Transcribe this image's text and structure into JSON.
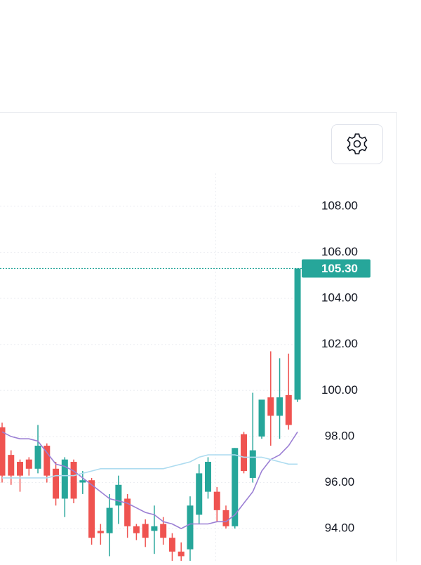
{
  "chart_data": {
    "type": "candlestick",
    "ohlc": [
      [
        98.4,
        98.6,
        96.0,
        96.3
      ],
      [
        97.2,
        97.4,
        95.9,
        96.3
      ],
      [
        96.9,
        97.0,
        95.6,
        96.3
      ],
      [
        97.0,
        97.1,
        96.3,
        96.6
      ],
      [
        96.6,
        98.5,
        96.4,
        97.6
      ],
      [
        97.6,
        97.7,
        96.0,
        96.3
      ],
      [
        96.6,
        96.9,
        95.0,
        95.3
      ],
      [
        95.3,
        97.1,
        94.5,
        97.0
      ],
      [
        96.9,
        97.0,
        95.1,
        95.3
      ],
      [
        96.0,
        96.5,
        95.5,
        96.1
      ],
      [
        96.1,
        96.2,
        93.3,
        93.6
      ],
      [
        93.9,
        94.2,
        93.3,
        93.8
      ],
      [
        93.8,
        95.5,
        92.8,
        94.9
      ],
      [
        95.0,
        96.3,
        94.2,
        95.9
      ],
      [
        95.3,
        95.5,
        93.6,
        94.1
      ],
      [
        94.1,
        94.2,
        93.5,
        93.8
      ],
      [
        94.2,
        94.4,
        93.2,
        93.6
      ],
      [
        93.9,
        95.0,
        92.9,
        94.1
      ],
      [
        94.2,
        94.5,
        93.3,
        93.6
      ],
      [
        93.6,
        93.8,
        92.6,
        93.0
      ],
      [
        93.0,
        93.4,
        92.6,
        92.8
      ],
      [
        93.1,
        95.4,
        92.6,
        95.0
      ],
      [
        94.6,
        96.8,
        94.2,
        96.4
      ],
      [
        95.6,
        97.1,
        95.3,
        96.9
      ],
      [
        95.6,
        95.8,
        94.3,
        94.8
      ],
      [
        94.8,
        95.0,
        94.0,
        94.1
      ],
      [
        94.1,
        97.5,
        94.0,
        97.5
      ],
      [
        98.1,
        98.2,
        96.4,
        96.5
      ],
      [
        96.2,
        99.9,
        96.0,
        97.4
      ],
      [
        98.0,
        99.5,
        97.9,
        99.6
      ],
      [
        99.7,
        101.7,
        97.6,
        98.9
      ],
      [
        98.9,
        101.4,
        97.9,
        99.7
      ],
      [
        99.8,
        101.6,
        98.3,
        98.5
      ],
      [
        99.6,
        105.3,
        99.5,
        105.3
      ]
    ],
    "up_color": "#26a69a",
    "down_color": "#ef5350",
    "series": [
      {
        "color": "#9b7fd4",
        "values": [
          98.2,
          98.0,
          97.9,
          97.9,
          97.8,
          97.3,
          96.8,
          96.7,
          96.5,
          96.2,
          95.9,
          95.6,
          95.3,
          95.2,
          95.1,
          94.9,
          94.7,
          94.6,
          94.3,
          94.2,
          94.0,
          94.2,
          94.2,
          94.2,
          94.3,
          94.3,
          94.6,
          95.1,
          95.6,
          96.5,
          97.0,
          97.2,
          97.6,
          98.2
        ]
      },
      {
        "color": "#aedcf0",
        "values": [
          96.2,
          96.2,
          96.2,
          96.2,
          96.2,
          96.2,
          96.3,
          96.3,
          96.3,
          96.4,
          96.5,
          96.6,
          96.6,
          96.6,
          96.6,
          96.6,
          96.6,
          96.6,
          96.6,
          96.7,
          96.8,
          96.9,
          97.1,
          97.2,
          97.2,
          97.2,
          97.2,
          97.1,
          97.1,
          97.1,
          97.0,
          96.9,
          96.8,
          96.8
        ]
      }
    ],
    "last_price": {
      "value": 105.3,
      "label": "105.30"
    },
    "ylim": [
      92.57,
      109.43
    ],
    "yticks": [
      {
        "value": 94,
        "label": "94.00"
      },
      {
        "value": 96,
        "label": "96.00"
      },
      {
        "value": 98,
        "label": "98.00"
      },
      {
        "value": 100,
        "label": "100.00"
      },
      {
        "value": 102,
        "label": "102.00"
      },
      {
        "value": 104,
        "label": "104.00"
      },
      {
        "value": 106,
        "label": "106.00"
      },
      {
        "value": 108,
        "label": "108.00"
      }
    ],
    "grid": true
  }
}
